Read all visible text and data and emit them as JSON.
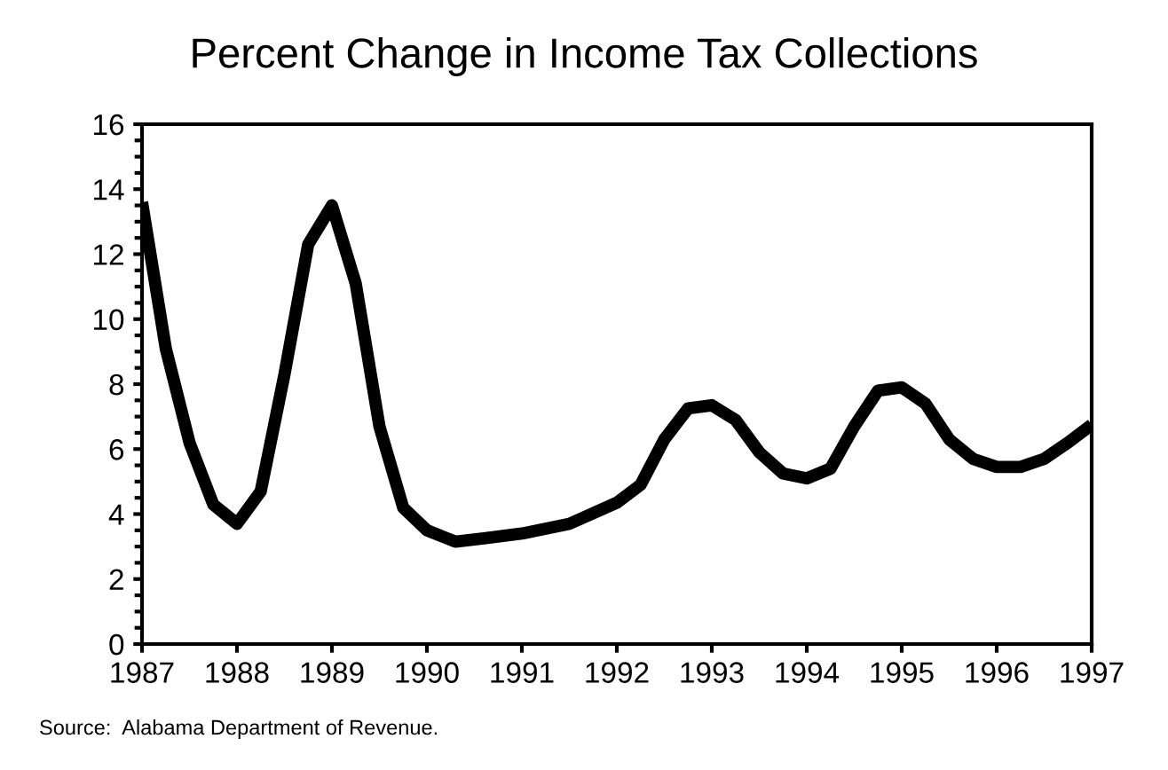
{
  "chart_data": {
    "type": "line",
    "title": "Percent Change in Income Tax Collections",
    "series": [
      {
        "color": "#000000",
        "x": [
          1987,
          1987.25,
          1987.5,
          1987.75,
          1988,
          1988.25,
          1988.5,
          1988.75,
          1989,
          1989.25,
          1989.5,
          1989.75,
          1990,
          1990.3,
          1990.6,
          1991,
          1991.5,
          1992,
          1992.25,
          1992.5,
          1992.75,
          1993,
          1993.25,
          1993.5,
          1993.75,
          1994,
          1994.25,
          1994.5,
          1994.75,
          1995,
          1995.25,
          1995.5,
          1995.75,
          1996,
          1996.25,
          1996.5,
          1996.75,
          1997
        ],
        "values": [
          13.6,
          9.1,
          6.2,
          4.3,
          3.7,
          4.7,
          8.3,
          12.3,
          13.5,
          11.1,
          6.7,
          4.2,
          3.5,
          3.15,
          3.25,
          3.4,
          3.7,
          4.35,
          4.9,
          6.3,
          7.25,
          7.35,
          6.9,
          5.9,
          5.25,
          5.1,
          5.4,
          6.7,
          7.8,
          7.9,
          7.4,
          6.3,
          5.7,
          5.45,
          5.45,
          5.7,
          6.2,
          6.75
        ]
      }
    ],
    "xlim": [
      1987,
      1997
    ],
    "xticks": [
      1987,
      1988,
      1989,
      1990,
      1991,
      1992,
      1993,
      1994,
      1995,
      1996,
      1997
    ],
    "ylim": [
      0,
      16
    ],
    "yticks": [
      0,
      2,
      4,
      6,
      8,
      10,
      12,
      14,
      16
    ],
    "grid": false,
    "legend": false,
    "marker": "none",
    "line_style": "solid",
    "annotations": [
      "Source:  Alabama Department of Revenue."
    ]
  }
}
